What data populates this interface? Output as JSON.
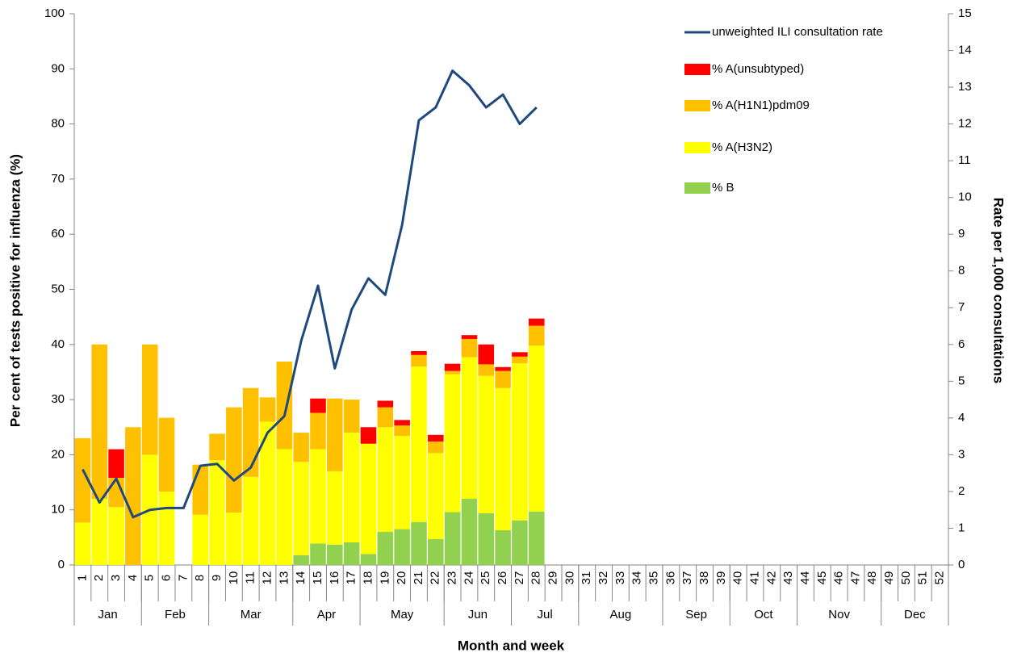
{
  "chart_data": {
    "type": "stacked-bar-line",
    "x_title": "Month and week",
    "y_title": "Per cent of tests positive for influenza (%)",
    "y2_title": "Rate per 1,000 consultations",
    "categories": [
      "1",
      "2",
      "3",
      "4",
      "5",
      "6",
      "7",
      "8",
      "9",
      "10",
      "11",
      "12",
      "13",
      "14",
      "15",
      "16",
      "17",
      "18",
      "19",
      "20",
      "21",
      "22",
      "23",
      "24",
      "25",
      "26",
      "27",
      "28",
      "29",
      "30",
      "31",
      "32",
      "33",
      "34",
      "35",
      "36",
      "37",
      "38",
      "39",
      "40",
      "41",
      "42",
      "43",
      "44",
      "45",
      "46",
      "47",
      "48",
      "49",
      "50",
      "51",
      "52"
    ],
    "month_of_week": [
      "Jan",
      "Jan",
      "Jan",
      "Jan",
      "Feb",
      "Feb",
      "Feb",
      "Feb",
      "Mar",
      "Mar",
      "Mar",
      "Mar",
      "Mar",
      "Apr",
      "Apr",
      "Apr",
      "Apr",
      "May",
      "May",
      "May",
      "May",
      "May",
      "Jun",
      "Jun",
      "Jun",
      "Jun",
      "Jul",
      "Jul",
      "Jul",
      "Jul",
      "Aug",
      "Aug",
      "Aug",
      "Aug",
      "Aug",
      "Sep",
      "Sep",
      "Sep",
      "Sep",
      "Oct",
      "Oct",
      "Oct",
      "Oct",
      "Nov",
      "Nov",
      "Nov",
      "Nov",
      "Nov",
      "Dec",
      "Dec",
      "Dec",
      "Dec"
    ],
    "series": [
      {
        "name": "% B",
        "color": "#92d050",
        "type": "bar",
        "values": [
          0,
          0,
          0,
          0,
          0,
          0,
          0,
          0,
          0,
          0,
          0,
          0,
          0,
          1.8,
          3.9,
          3.7,
          4.1,
          2,
          6,
          6.5,
          7.8,
          4.7,
          9.6,
          12,
          9.4,
          6.3,
          8.1,
          9.7,
          null,
          null,
          null,
          null,
          null,
          null,
          null,
          null,
          null,
          null,
          null,
          null,
          null,
          null,
          null,
          null,
          null,
          null,
          null,
          null,
          null,
          null,
          null,
          null
        ]
      },
      {
        "name": "% A(H3N2)",
        "color": "#ffff00",
        "type": "bar",
        "values": [
          7.7,
          12,
          10.5,
          0,
          20,
          13.3,
          0,
          9.1,
          19,
          9.5,
          16,
          26,
          21,
          16.9,
          17.1,
          13.3,
          19.9,
          20,
          19,
          16.9,
          28.2,
          15.6,
          25,
          25.7,
          24.9,
          25.8,
          28.5,
          30.1,
          null,
          null,
          null,
          null,
          null,
          null,
          null,
          null,
          null,
          null,
          null,
          null,
          null,
          null,
          null,
          null,
          null,
          null,
          null,
          null,
          null,
          null,
          null,
          null
        ]
      },
      {
        "name": "% A(H1N1)pdm09",
        "color": "#ffc000",
        "type": "bar",
        "values": [
          15.3,
          28,
          5.3,
          25,
          20,
          13.4,
          0,
          9.1,
          4.8,
          19.1,
          16.1,
          4.4,
          15.9,
          5.3,
          6.6,
          13.2,
          6,
          0,
          3.6,
          1.9,
          2.1,
          2.1,
          0.6,
          3.3,
          2.1,
          3.1,
          1.2,
          3.6,
          null,
          null,
          null,
          null,
          null,
          null,
          null,
          null,
          null,
          null,
          null,
          null,
          null,
          null,
          null,
          null,
          null,
          null,
          null,
          null,
          null,
          null,
          null,
          null
        ]
      },
      {
        "name": "% A(unsubtyped)",
        "color": "#ff0000",
        "type": "bar",
        "values": [
          0,
          0,
          5.2,
          0,
          0,
          0,
          0,
          0,
          0,
          0,
          0,
          0,
          0,
          0,
          2.6,
          0,
          0,
          3,
          1.2,
          1,
          0.7,
          1.2,
          1.3,
          0.7,
          3.6,
          0.7,
          0.8,
          1.3,
          null,
          null,
          null,
          null,
          null,
          null,
          null,
          null,
          null,
          null,
          null,
          null,
          null,
          null,
          null,
          null,
          null,
          null,
          null,
          null,
          null,
          null,
          null,
          null
        ]
      },
      {
        "name": "unweighted ILI consultation rate",
        "color": "#1f497d",
        "type": "line",
        "axis": "y2",
        "values": [
          2.6,
          1.7,
          2.35,
          1.3,
          1.5,
          1.55,
          1.55,
          2.7,
          2.75,
          2.3,
          2.65,
          3.6,
          4.05,
          6.1,
          7.6,
          5.35,
          6.95,
          7.8,
          7.35,
          9.25,
          12.1,
          12.45,
          13.45,
          13.05,
          12.45,
          12.8,
          12,
          12.45,
          null,
          null,
          null,
          null,
          null,
          null,
          null,
          null,
          null,
          null,
          null,
          null,
          null,
          null,
          null,
          null,
          null,
          null,
          null,
          null,
          null,
          null,
          null,
          null
        ]
      }
    ],
    "ylim": [
      0,
      100
    ],
    "yticks": [
      0,
      10,
      20,
      30,
      40,
      50,
      60,
      70,
      80,
      90,
      100
    ],
    "y2lim": [
      0,
      15
    ],
    "y2ticks": [
      0,
      1,
      2,
      3,
      4,
      5,
      6,
      7,
      8,
      9,
      10,
      11,
      12,
      13,
      14,
      15
    ],
    "grid": false,
    "legend": "top-right"
  }
}
